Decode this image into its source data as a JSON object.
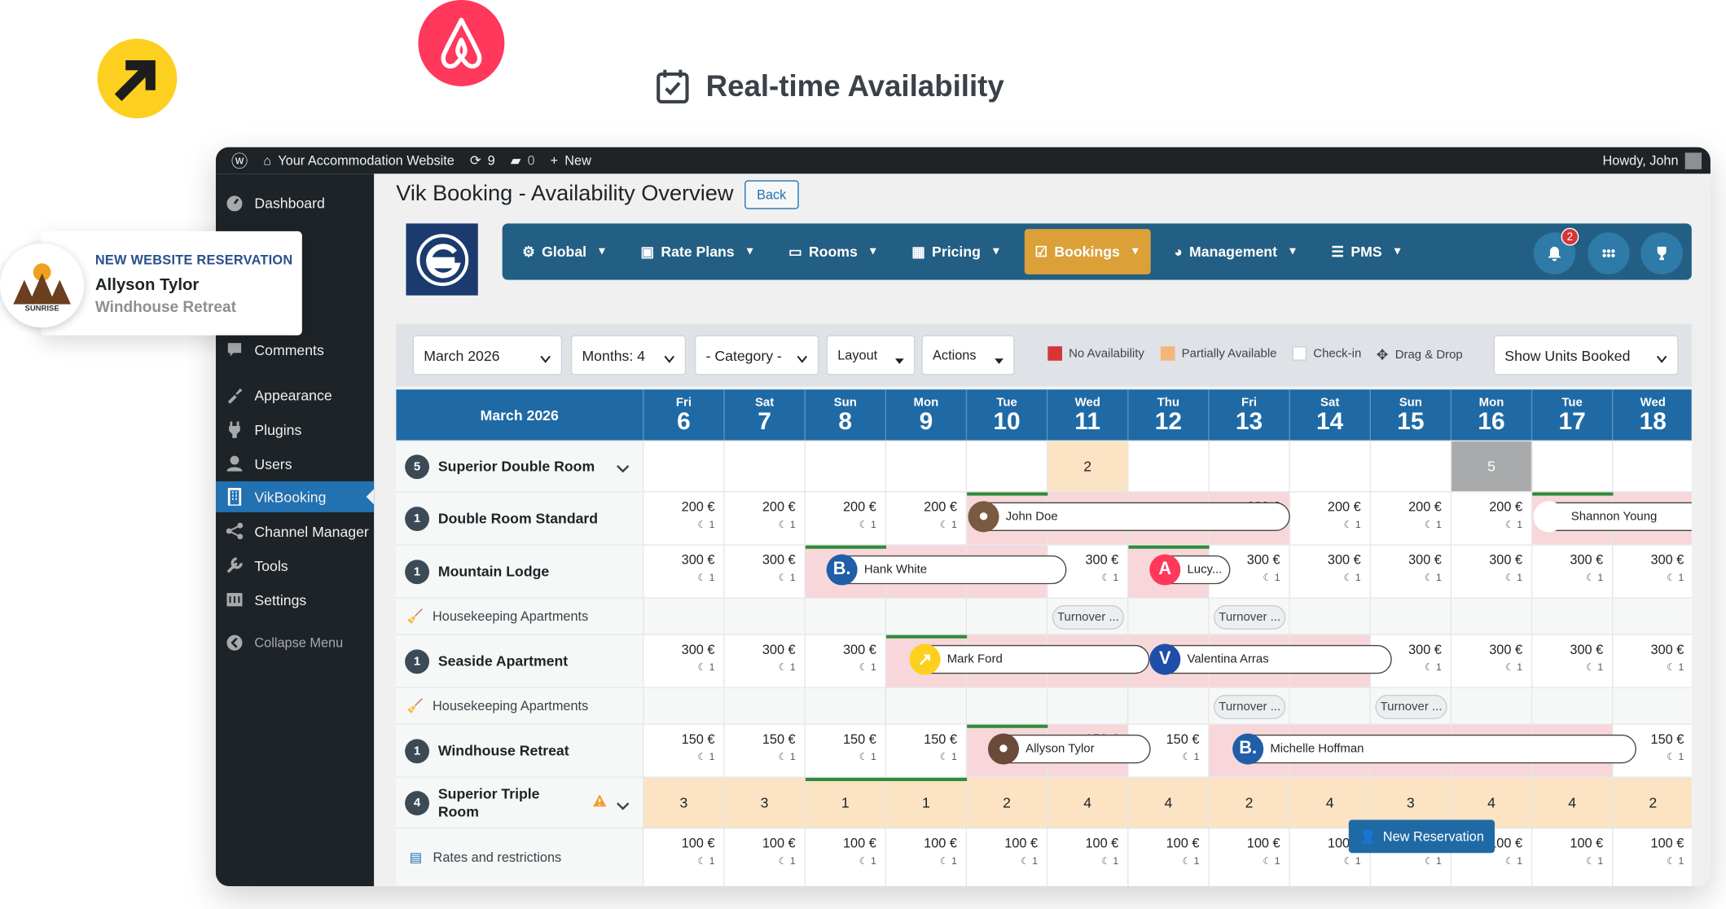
{
  "hero": {
    "title": "Real-time Availability"
  },
  "admin_bar": {
    "site_name": "Your Accommodation Website",
    "updates": "9",
    "comments": "0",
    "new_label": "New",
    "howdy": "Howdy, John"
  },
  "sidebar": {
    "items": [
      {
        "label": "Dashboard",
        "icon": "dashboard-icon"
      },
      {
        "label": "Comments",
        "icon": "comments-icon"
      },
      {
        "label": "Appearance",
        "icon": "appearance-icon"
      },
      {
        "label": "Plugins",
        "icon": "plugins-icon"
      },
      {
        "label": "Users",
        "icon": "users-icon"
      },
      {
        "label": "VikBooking",
        "icon": "building-icon",
        "active": true
      },
      {
        "label": "Channel Manager",
        "icon": "share-icon"
      },
      {
        "label": "Tools",
        "icon": "tools-icon"
      },
      {
        "label": "Settings",
        "icon": "settings-icon"
      }
    ],
    "collapse": "Collapse Menu"
  },
  "notification": {
    "tag": "NEW WEBSITE RESERVATION",
    "name": "Allyson Tylor",
    "property": "Windhouse Retreat",
    "logo_text": "SUNRISE"
  },
  "page": {
    "title": "Vik Booking - Availability Overview",
    "back": "Back"
  },
  "nav": {
    "items": [
      {
        "label": "Global",
        "icon": "gears-icon"
      },
      {
        "label": "Rate Plans",
        "icon": "briefcase-icon"
      },
      {
        "label": "Rooms",
        "icon": "bed-icon"
      },
      {
        "label": "Pricing",
        "icon": "table-icon"
      },
      {
        "label": "Bookings",
        "icon": "calendar-check-icon",
        "active": true
      },
      {
        "label": "Management",
        "icon": "pie-chart-icon"
      },
      {
        "label": "PMS",
        "icon": "list-check-icon"
      }
    ],
    "notif_count": "2"
  },
  "filters": {
    "month": "March 2026",
    "months": "Months: 4",
    "category": "- Category -",
    "layout": "Layout",
    "actions": "Actions",
    "legend": [
      {
        "label": "No Availability",
        "color": "#d63638"
      },
      {
        "label": "Partially Available",
        "color": "#f5b57a"
      },
      {
        "label": "Check-in",
        "color": "#ffffff"
      },
      {
        "label": "Drag & Drop",
        "color": "#3c434a"
      }
    ],
    "show_units": "Show Units Booked"
  },
  "calendar": {
    "month_label": "March 2026",
    "days": [
      {
        "dow": "Fri",
        "d": "6"
      },
      {
        "dow": "Sat",
        "d": "7"
      },
      {
        "dow": "Sun",
        "d": "8"
      },
      {
        "dow": "Mon",
        "d": "9"
      },
      {
        "dow": "Tue",
        "d": "10"
      },
      {
        "dow": "Wed",
        "d": "11"
      },
      {
        "dow": "Thu",
        "d": "12"
      },
      {
        "dow": "Fri",
        "d": "13"
      },
      {
        "dow": "Sat",
        "d": "14"
      },
      {
        "dow": "Sun",
        "d": "15"
      },
      {
        "dow": "Mon",
        "d": "16"
      },
      {
        "dow": "Tue",
        "d": "17"
      },
      {
        "dow": "Wed",
        "d": "18"
      }
    ],
    "rooms": {
      "superior_double": {
        "units": "5",
        "name": "Superior Double Room",
        "wed11": "2",
        "mon16": "5"
      },
      "double_standard": {
        "units": "1",
        "name": "Double Room Standard",
        "price": "200 €",
        "min": "1",
        "guest1": "John Doe",
        "guest2": "Shannon Young"
      },
      "mountain_lodge": {
        "units": "1",
        "name": "Mountain Lodge",
        "price": "300 €",
        "min": "1",
        "guest1": "Hank White",
        "guest2": "Lucy..."
      },
      "housekeeping1": {
        "name": "Housekeeping Apartments",
        "turnover": "Turnover ..."
      },
      "seaside": {
        "units": "1",
        "name": "Seaside Apartment",
        "price": "300 €",
        "min": "1",
        "guest1": "Mark Ford",
        "guest2": "Valentina Arras"
      },
      "housekeeping2": {
        "name": "Housekeeping Apartments",
        "turnover": "Turnover ..."
      },
      "windhouse": {
        "units": "1",
        "name": "Windhouse Retreat",
        "price": "150 €",
        "min": "1",
        "guest1": "Allyson Tylor",
        "guest2": "Michelle Hoffman"
      },
      "superior_triple": {
        "units": "4",
        "name": "Superior Triple Room",
        "counts": [
          "3",
          "3",
          "1",
          "1",
          "2",
          "4",
          "4",
          "2",
          "4",
          "3",
          "4",
          "4",
          "2"
        ]
      },
      "rates": {
        "name": "Rates and restrictions",
        "price": "100 €",
        "min": "1"
      }
    }
  },
  "new_reservation": "New Reservation"
}
